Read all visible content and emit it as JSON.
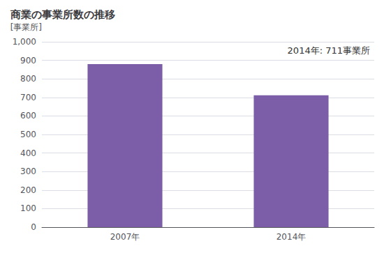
{
  "chart_data": {
    "type": "bar",
    "title": "商業の事業所数の推移",
    "ylabel": "[事業所]",
    "annotation": "2014年: 711事業所",
    "categories": [
      "2007年",
      "2014年"
    ],
    "values": [
      880,
      711
    ],
    "color": "#7B5EA7",
    "ylim": [
      0,
      1000
    ],
    "yticks": [
      0,
      100,
      200,
      300,
      400,
      500,
      600,
      700,
      800,
      900,
      {
        "value": 1000,
        "label": "1,000"
      }
    ],
    "grid": true
  }
}
